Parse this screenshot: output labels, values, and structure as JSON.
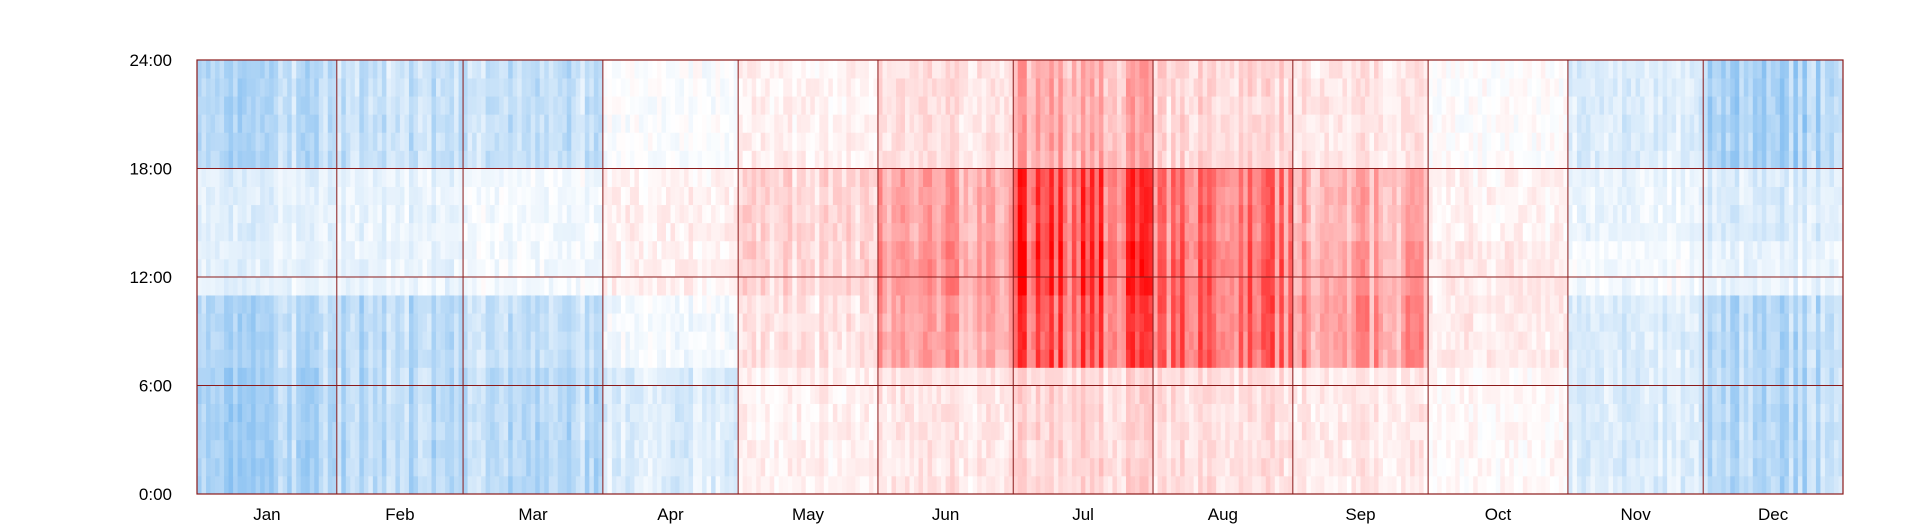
{
  "chart_data": {
    "type": "heatmap",
    "title": "",
    "xlabel": "",
    "ylabel": "",
    "x_range": [
      "Jan 1",
      "Dec 31"
    ],
    "y_range": [
      0,
      24
    ],
    "grid": true,
    "legend": "none",
    "x_ticks": [
      "Jan",
      "Feb",
      "Mar",
      "Apr",
      "May",
      "Jun",
      "Jul",
      "Aug",
      "Sep",
      "Oct",
      "Nov",
      "Dec"
    ],
    "y_ticks": [
      "0:00",
      "6:00",
      "12:00",
      "18:00",
      "24:00"
    ],
    "month_days": [
      31,
      28,
      31,
      30,
      31,
      30,
      31,
      31,
      30,
      31,
      30,
      31
    ],
    "hours_per_day": 24,
    "colors": {
      "cold": "#1e88e5",
      "neutral": "#ffffff",
      "hot": "#ff0000",
      "grid": "#8b1a1a",
      "frame": "#8b1a1a"
    },
    "intensity_scale": [
      -1,
      1
    ],
    "monthly_intensity_by_hour_band": [
      {
        "month": "Jan",
        "night": -0.35,
        "morning": -0.3,
        "midday": -0.1,
        "afternoon": -0.12,
        "evening": -0.3
      },
      {
        "month": "Feb",
        "night": -0.3,
        "morning": -0.3,
        "midday": -0.1,
        "afternoon": -0.1,
        "evening": -0.25
      },
      {
        "month": "Mar",
        "night": -0.3,
        "morning": -0.25,
        "midday": -0.05,
        "afternoon": -0.05,
        "evening": -0.25
      },
      {
        "month": "Apr",
        "night": -0.15,
        "morning": -0.05,
        "midday": 0.05,
        "afternoon": 0.05,
        "evening": -0.02
      },
      {
        "month": "May",
        "night": 0.05,
        "morning": 0.1,
        "midday": 0.15,
        "afternoon": 0.15,
        "evening": 0.05
      },
      {
        "month": "Jun",
        "night": 0.1,
        "morning": 0.35,
        "midday": 0.4,
        "afternoon": 0.35,
        "evening": 0.12
      },
      {
        "month": "Jul",
        "night": 0.15,
        "morning": 0.6,
        "midday": 0.7,
        "afternoon": 0.65,
        "evening": 0.3
      },
      {
        "month": "Aug",
        "night": 0.12,
        "morning": 0.55,
        "midday": 0.55,
        "afternoon": 0.5,
        "evening": 0.15
      },
      {
        "month": "Sep",
        "night": 0.08,
        "morning": 0.4,
        "midday": 0.35,
        "afternoon": 0.3,
        "evening": 0.1
      },
      {
        "month": "Oct",
        "night": 0.02,
        "morning": 0.08,
        "midday": 0.08,
        "afternoon": 0.05,
        "evening": 0.0
      },
      {
        "month": "Nov",
        "night": -0.15,
        "morning": -0.15,
        "midday": -0.05,
        "afternoon": -0.08,
        "evening": -0.15
      },
      {
        "month": "Dec",
        "night": -0.3,
        "morning": -0.3,
        "midday": -0.1,
        "afternoon": -0.15,
        "evening": -0.35
      }
    ]
  }
}
